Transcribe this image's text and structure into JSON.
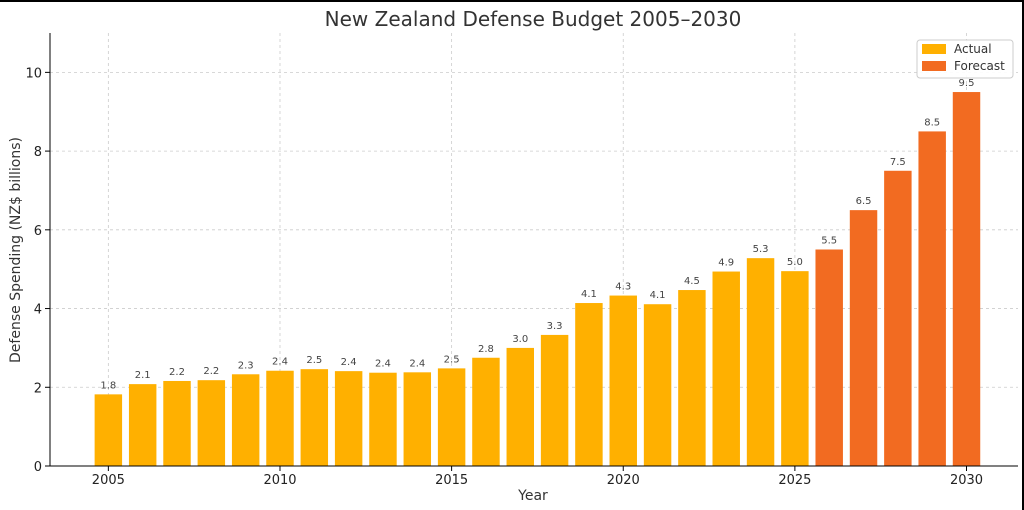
{
  "chart_data": {
    "type": "bar",
    "title": "New Zealand Defense Budget 2005–2030",
    "xlabel": "Year",
    "ylabel": "Defense Spending (NZ$ billions)",
    "xlim": [
      2003.3,
      2031.5
    ],
    "ylim": [
      0,
      11
    ],
    "x_ticks": [
      2005,
      2010,
      2015,
      2020,
      2025,
      2030
    ],
    "y_ticks": [
      0,
      2,
      4,
      6,
      8,
      10
    ],
    "grid": true,
    "legend_position": "top-right",
    "series": [
      {
        "name": "Actual",
        "color": "#ffb000",
        "x": [
          2005,
          2006,
          2007,
          2008,
          2009,
          2010,
          2011,
          2012,
          2013,
          2014,
          2015,
          2016,
          2017,
          2018,
          2019,
          2020,
          2021,
          2022,
          2023,
          2024,
          2025
        ],
        "values": [
          1.82,
          2.08,
          2.16,
          2.18,
          2.33,
          2.42,
          2.46,
          2.41,
          2.37,
          2.38,
          2.48,
          2.75,
          3.0,
          3.33,
          4.14,
          4.33,
          4.11,
          4.47,
          4.94,
          5.28,
          4.95
        ],
        "labels": [
          "1.8",
          "2.1",
          "2.2",
          "2.2",
          "2.3",
          "2.4",
          "2.5",
          "2.4",
          "2.4",
          "2.4",
          "2.5",
          "2.8",
          "3.0",
          "3.3",
          "4.1",
          "4.3",
          "4.1",
          "4.5",
          "4.9",
          "5.3",
          "5.0"
        ]
      },
      {
        "name": "Forecast",
        "color": "#f26b21",
        "x": [
          2026,
          2027,
          2028,
          2029,
          2030
        ],
        "values": [
          5.5,
          6.5,
          7.5,
          8.5,
          9.5
        ],
        "labels": [
          "5.5",
          "6.5",
          "7.5",
          "8.5",
          "9.5"
        ]
      }
    ]
  }
}
